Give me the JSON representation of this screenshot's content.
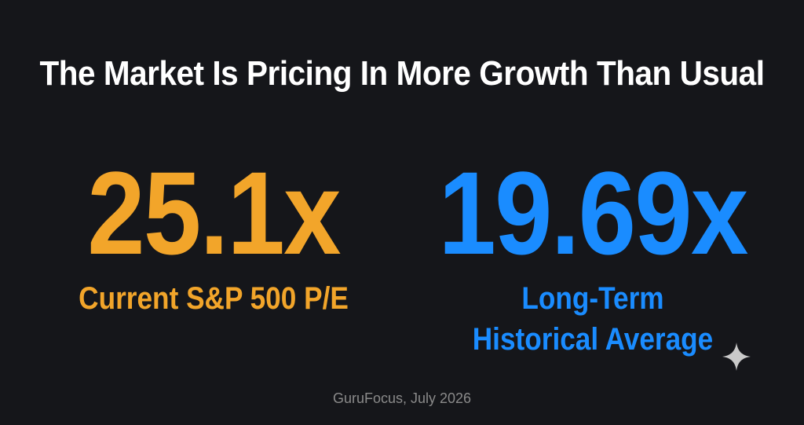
{
  "headline": "The Market Is Pricing In More Growth Than Usual",
  "current": {
    "value": "25.1x",
    "label": "Current S&P 500 P/E",
    "color": "#f2a52a"
  },
  "historical": {
    "value": "19.69x",
    "label": "Long-Term Historical Average",
    "color": "#1a8cff"
  },
  "source": "GuruFocus, July 2026",
  "sparkle_icon": "sparkle-icon",
  "colors": {
    "background": "#15161a",
    "headline": "#ffffff",
    "source": "#8a8a8a",
    "sparkle": "#c9c9c9"
  }
}
